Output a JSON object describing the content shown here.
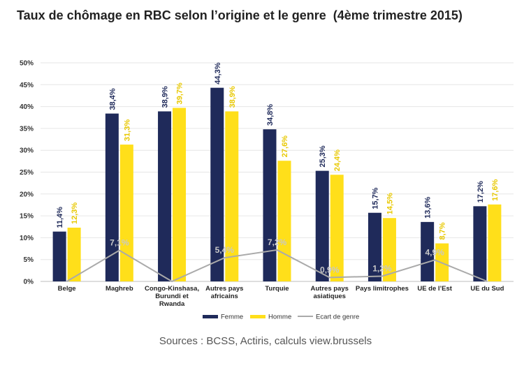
{
  "title": "Taux de chômage en RBC selon l’origine et le genre  (4ème trimestre 2015)",
  "source": "Sources : BCSS, Actiris, calculs view.brussels",
  "chart_data": {
    "type": "bar",
    "title": "Taux de chômage en RBC selon l’origine et le genre  (4ème trimestre 2015)",
    "categories": [
      [
        "Belge"
      ],
      [
        "Maghreb"
      ],
      [
        "Congo-Kinshasa,",
        "Burundi et",
        "Rwanda"
      ],
      [
        "Autres pays",
        "africains"
      ],
      [
        "Turquie"
      ],
      [
        "Autres pays",
        "asiatiques"
      ],
      [
        "Pays limitrophes"
      ],
      [
        "UE de l’Est"
      ],
      [
        "UE du Sud"
      ]
    ],
    "series": [
      {
        "name": "Femme",
        "type": "bar",
        "color": "#1f2a5a",
        "values": [
          11.4,
          38.4,
          38.9,
          44.3,
          34.8,
          25.3,
          15.7,
          13.6,
          17.2
        ],
        "labels": [
          "11,4%",
          "38,4%",
          "38,9%",
          "44,3%",
          "34,8%",
          "25,3%",
          "15,7%",
          "13,6%",
          "17,2%"
        ],
        "label_color": "#1f2a5a"
      },
      {
        "name": "Homme",
        "type": "bar",
        "color": "#ffdf1a",
        "values": [
          12.3,
          31.3,
          39.7,
          38.9,
          27.6,
          24.4,
          14.5,
          8.7,
          17.6
        ],
        "labels": [
          "12,3%",
          "31,3%",
          "39,7%",
          "38,9%",
          "27,6%",
          "24,4%",
          "14,5%",
          "8,7%",
          "17,6%"
        ],
        "label_color": "#e8c800"
      },
      {
        "name": "Ecart de genre",
        "type": "line",
        "color": "#aaaaaa",
        "values": [
          0.0,
          7.1,
          0.0,
          5.4,
          7.2,
          0.9,
          1.2,
          4.9,
          0.0
        ],
        "labels": [
          "",
          "7,1%",
          "",
          "5,4%",
          "7,2%",
          "0,9%",
          "1,2%",
          "4,9%",
          ""
        ],
        "label_color": "#c8c8c8"
      }
    ],
    "yticks": [
      "0%",
      "5%",
      "10%",
      "15%",
      "20%",
      "25%",
      "30%",
      "35%",
      "40%",
      "45%",
      "50%"
    ],
    "ylim": [
      0,
      50
    ],
    "xlabel": "",
    "ylabel": "",
    "legend_position": "bottom-center"
  }
}
